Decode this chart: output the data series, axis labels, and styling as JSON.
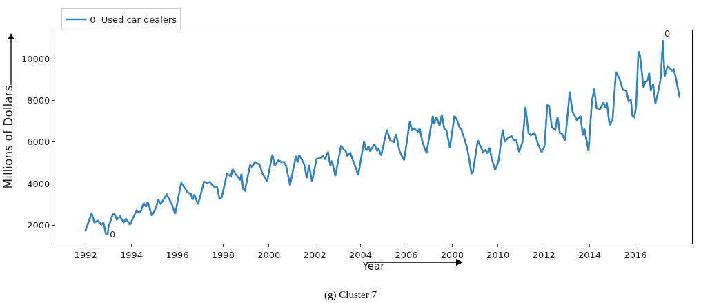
{
  "chart_data": {
    "type": "line",
    "title": "(g) Cluster 7",
    "xlabel": "Year",
    "ylabel": "Millions of Dollars",
    "x": [
      1991.98,
      1992.26,
      1992.38,
      1992.53,
      1992.68,
      1992.78,
      1992.88,
      1992.96,
      1993.0,
      1993.18,
      1993.26,
      1993.36,
      1993.5,
      1993.66,
      1993.76,
      1993.93,
      1994.23,
      1994.33,
      1994.43,
      1994.53,
      1994.63,
      1994.71,
      1994.89,
      1995.07,
      1995.17,
      1995.27,
      1995.54,
      1995.74,
      1995.91,
      1996.17,
      1996.34,
      1996.47,
      1996.59,
      1996.67,
      1996.74,
      1996.91,
      1997.17,
      1997.29,
      1997.41,
      1997.64,
      1997.74,
      1997.84,
      1997.94,
      1998.17,
      1998.34,
      1998.41,
      1998.54,
      1998.69,
      1998.74,
      1998.8,
      1998.88,
      1998.95,
      1999.18,
      1999.25,
      1999.4,
      1999.5,
      1999.6,
      1999.7,
      1999.92,
      2000.15,
      2000.25,
      2000.42,
      2000.55,
      2000.65,
      2000.75,
      2000.9,
      2000.92,
      2001.18,
      2001.25,
      2001.32,
      2001.45,
      2001.55,
      2001.65,
      2001.75,
      2001.88,
      2002.08,
      2002.25,
      2002.35,
      2002.45,
      2002.58,
      2002.68,
      2002.75,
      2002.9,
      2003.15,
      2003.28,
      2003.35,
      2003.42,
      2003.55,
      2003.7,
      2003.9,
      2004.15,
      2004.25,
      2004.35,
      2004.42,
      2004.6,
      2004.72,
      2004.78,
      2004.9,
      2005.15,
      2005.3,
      2005.45,
      2005.55,
      2005.7,
      2005.9,
      2006.15,
      2006.25,
      2006.35,
      2006.5,
      2006.58,
      2006.7,
      2006.88,
      2007.15,
      2007.22,
      2007.32,
      2007.45,
      2007.55,
      2007.65,
      2007.75,
      2007.9,
      2008.1,
      2008.2,
      2008.32,
      2008.4,
      2008.5,
      2008.65,
      2008.75,
      2008.84,
      2008.9,
      2009.12,
      2009.35,
      2009.45,
      2009.55,
      2009.63,
      2009.73,
      2009.88,
      2010.03,
      2010.2,
      2010.3,
      2010.45,
      2010.6,
      2010.7,
      2010.8,
      2010.92,
      2011.07,
      2011.2,
      2011.33,
      2011.43,
      2011.6,
      2011.75,
      2011.9,
      2012.03,
      2012.15,
      2012.23,
      2012.35,
      2012.5,
      2012.6,
      2012.7,
      2012.8,
      2012.93,
      2013.13,
      2013.25,
      2013.45,
      2013.6,
      2013.7,
      2013.77,
      2013.95,
      2014.1,
      2014.2,
      2014.3,
      2014.45,
      2014.6,
      2014.7,
      2014.75,
      2014.87,
      2015.0,
      2015.15,
      2015.3,
      2015.45,
      2015.6,
      2015.7,
      2015.8,
      2015.87,
      2015.95,
      2016.03,
      2016.13,
      2016.2,
      2016.35,
      2016.43,
      2016.53,
      2016.6,
      2016.67,
      2016.77,
      2016.87,
      2017.0,
      2017.1,
      2017.2,
      2017.27,
      2017.4,
      2017.5,
      2017.6,
      2017.67,
      2017.77,
      2017.93
    ],
    "series": [
      {
        "name": "0  Used car dealers",
        "color": "#3282bd",
        "values": [
          1710,
          2580,
          2140,
          2220,
          2030,
          2110,
          1600,
          1570,
          1930,
          2520,
          2550,
          2280,
          2430,
          2140,
          2310,
          2030,
          2720,
          2610,
          2740,
          3070,
          2900,
          3120,
          2460,
          2850,
          3260,
          3010,
          3480,
          3070,
          2550,
          4050,
          3770,
          3560,
          3520,
          3230,
          3480,
          3010,
          4100,
          4050,
          4080,
          3810,
          3830,
          3280,
          3340,
          4480,
          4350,
          4700,
          4480,
          4260,
          4160,
          4480,
          3730,
          3670,
          4920,
          4810,
          5050,
          4970,
          4920,
          4540,
          4100,
          5410,
          4860,
          5130,
          5030,
          5050,
          4860,
          4050,
          3920,
          5350,
          5030,
          5370,
          5130,
          4900,
          4260,
          4900,
          4100,
          5200,
          5240,
          5330,
          5200,
          5530,
          4860,
          5110,
          4370,
          5840,
          5620,
          5570,
          5350,
          5480,
          5030,
          4430,
          6030,
          5590,
          5810,
          5550,
          5920,
          5570,
          5700,
          5350,
          6600,
          6060,
          6010,
          6390,
          5570,
          5130,
          6990,
          6550,
          6660,
          6500,
          6640,
          6010,
          5460,
          7260,
          6880,
          7200,
          6790,
          7310,
          6660,
          6550,
          5730,
          7260,
          7090,
          6710,
          6600,
          6280,
          5730,
          5130,
          4480,
          4540,
          6090,
          5520,
          5620,
          5460,
          5730,
          5190,
          4650,
          5130,
          6600,
          6010,
          6220,
          6280,
          6060,
          6090,
          5520,
          6010,
          7690,
          6440,
          6330,
          6440,
          5900,
          5520,
          5790,
          7770,
          7750,
          6710,
          6600,
          7200,
          6440,
          6390,
          6060,
          8420,
          7480,
          7040,
          7260,
          6330,
          6660,
          5570,
          7970,
          8560,
          7640,
          7580,
          7910,
          7640,
          7910,
          6820,
          7090,
          9380,
          9050,
          8510,
          8460,
          7970,
          8020,
          7260,
          7200,
          7750,
          10360,
          10140,
          8620,
          8890,
          8950,
          9320,
          8460,
          8810,
          7850,
          8460,
          9050,
          10900,
          9160,
          9650,
          9540,
          9430,
          9490,
          9050,
          8130
        ]
      }
    ],
    "xlim": [
      1990.67,
      2018.47
    ],
    "xticks": [
      1992,
      1994,
      1996,
      1998,
      2000,
      2002,
      2004,
      2006,
      2008,
      2010,
      2012,
      2014,
      2016
    ],
    "ylim": [
      1120,
      11370
    ],
    "yticks": [
      2000,
      4000,
      6000,
      8000,
      10000
    ],
    "grid": false,
    "legend": "top left",
    "marker": "none",
    "line_style": "solid",
    "annotations": [
      {
        "text": "0",
        "x": 1993.0,
        "y": 1570
      },
      {
        "text": "0",
        "x": 2017.2,
        "y": 10900
      }
    ]
  }
}
